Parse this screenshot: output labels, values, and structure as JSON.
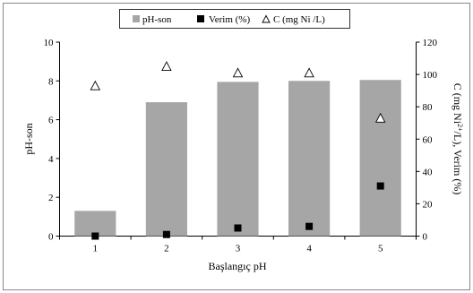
{
  "chart_data": {
    "type": "bar",
    "xlabel": "Başlangıç pH",
    "ylabel_left": "pH-son",
    "ylabel_right_parts": [
      "C (mg Ni",
      "2+",
      "/L), Verim (%)"
    ],
    "categories": [
      "1",
      "2",
      "3",
      "4",
      "5"
    ],
    "ylim_left": [
      0,
      10
    ],
    "ylim_right": [
      0,
      120
    ],
    "yticks_left": [
      "0",
      "2",
      "4",
      "6",
      "8",
      "10"
    ],
    "yticks_right": [
      "0",
      "20",
      "40",
      "60",
      "80",
      "100",
      "120"
    ],
    "legend": {
      "placement": "top-center",
      "entries": [
        "pH-son",
        "Verim (%)",
        "C (mg Ni /L)"
      ]
    },
    "series": [
      {
        "name": "pH-son",
        "kind": "bar",
        "axis": "left",
        "color": "#a6a6a6",
        "values": [
          1.3,
          6.9,
          7.95,
          8.0,
          8.05
        ]
      },
      {
        "name": "Verim (%)",
        "kind": "square",
        "axis": "right",
        "color": "#000000",
        "values": [
          0,
          1,
          5,
          6,
          31
        ]
      },
      {
        "name": "C (mg Ni /L)",
        "kind": "triangle",
        "axis": "right",
        "color": "#000000",
        "values": [
          93,
          105,
          101,
          101,
          73
        ]
      }
    ]
  }
}
